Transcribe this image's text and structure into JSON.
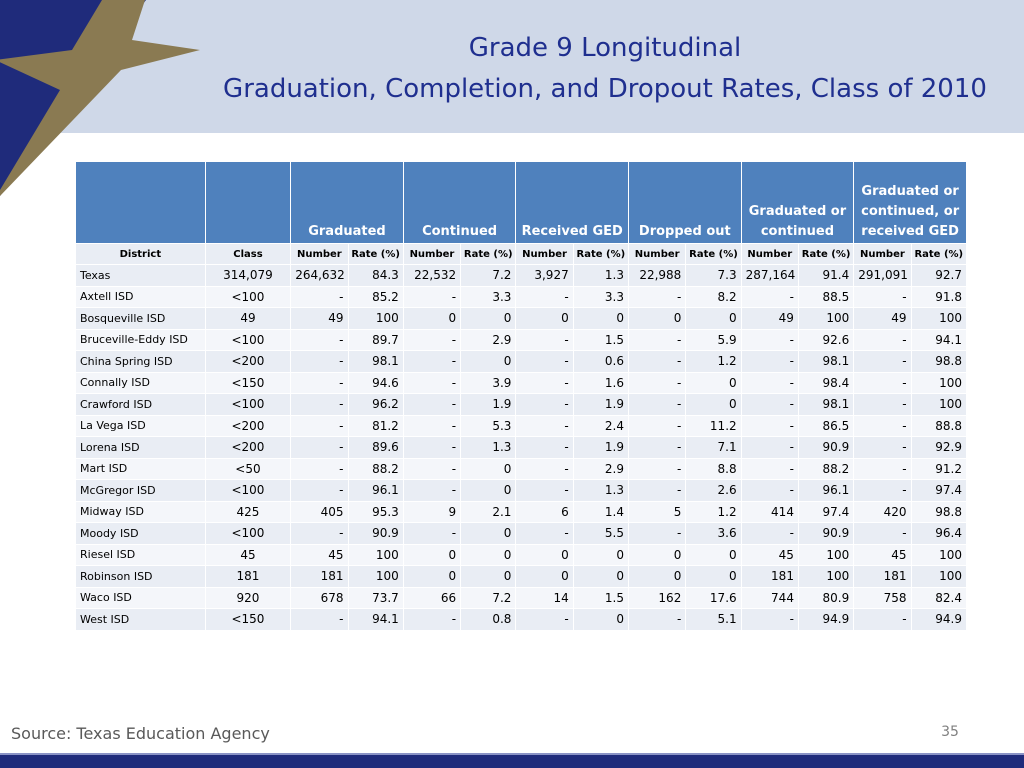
{
  "title_line1": "Grade 9 Longitudinal",
  "title_line2": "Graduation, Completion, and Dropout Rates, Class of 2010",
  "table": {
    "group_headers": [
      "",
      "",
      "Graduated",
      "Continued",
      "Received GED",
      "Dropped out",
      "Graduated or continued",
      "Graduated or continued, or received GED"
    ],
    "sub_headers": [
      "District",
      "Class",
      "Number",
      "Rate (%)",
      "Number",
      "Rate (%)",
      "Number",
      "Rate (%)",
      "Number",
      "Rate (%)",
      "Number",
      "Rate (%)",
      "Number",
      "Rate (%)"
    ],
    "rows": [
      [
        "Texas",
        "314,079",
        "264,632",
        "84.3",
        "22,532",
        "7.2",
        "3,927",
        "1.3",
        "22,988",
        "7.3",
        "287,164",
        "91.4",
        "291,091",
        "92.7"
      ],
      [
        "Axtell ISD",
        "<100",
        "-",
        "85.2",
        "-",
        "3.3",
        "-",
        "3.3",
        "-",
        "8.2",
        "-",
        "88.5",
        "-",
        "91.8"
      ],
      [
        "Bosqueville ISD",
        "49",
        "49",
        "100",
        "0",
        "0",
        "0",
        "0",
        "0",
        "0",
        "49",
        "100",
        "49",
        "100"
      ],
      [
        "Bruceville-Eddy ISD",
        "<100",
        "-",
        "89.7",
        "-",
        "2.9",
        "-",
        "1.5",
        "-",
        "5.9",
        "-",
        "92.6",
        "-",
        "94.1"
      ],
      [
        "China Spring ISD",
        "<200",
        "-",
        "98.1",
        "-",
        "0",
        "-",
        "0.6",
        "-",
        "1.2",
        "-",
        "98.1",
        "-",
        "98.8"
      ],
      [
        "Connally ISD",
        "<150",
        "-",
        "94.6",
        "-",
        "3.9",
        "-",
        "1.6",
        "-",
        "0",
        "-",
        "98.4",
        "-",
        "100"
      ],
      [
        "Crawford ISD",
        "<100",
        "-",
        "96.2",
        "-",
        "1.9",
        "-",
        "1.9",
        "-",
        "0",
        "-",
        "98.1",
        "-",
        "100"
      ],
      [
        "La Vega ISD",
        "<200",
        "-",
        "81.2",
        "-",
        "5.3",
        "-",
        "2.4",
        "-",
        "11.2",
        "-",
        "86.5",
        "-",
        "88.8"
      ],
      [
        "Lorena ISD",
        "<200",
        "-",
        "89.6",
        "-",
        "1.3",
        "-",
        "1.9",
        "-",
        "7.1",
        "-",
        "90.9",
        "-",
        "92.9"
      ],
      [
        "Mart ISD",
        "<50",
        "-",
        "88.2",
        "-",
        "0",
        "-",
        "2.9",
        "-",
        "8.8",
        "-",
        "88.2",
        "-",
        "91.2"
      ],
      [
        "McGregor ISD",
        "<100",
        "-",
        "96.1",
        "-",
        "0",
        "-",
        "1.3",
        "-",
        "2.6",
        "-",
        "96.1",
        "-",
        "97.4"
      ],
      [
        "Midway ISD",
        "425",
        "405",
        "95.3",
        "9",
        "2.1",
        "6",
        "1.4",
        "5",
        "1.2",
        "414",
        "97.4",
        "420",
        "98.8"
      ],
      [
        "Moody ISD",
        "<100",
        "-",
        "90.9",
        "-",
        "0",
        "-",
        "5.5",
        "-",
        "3.6",
        "-",
        "90.9",
        "-",
        "96.4"
      ],
      [
        "Riesel ISD",
        "45",
        "45",
        "100",
        "0",
        "0",
        "0",
        "0",
        "0",
        "0",
        "45",
        "100",
        "45",
        "100"
      ],
      [
        "Robinson ISD",
        "181",
        "181",
        "100",
        "0",
        "0",
        "0",
        "0",
        "0",
        "0",
        "181",
        "100",
        "181",
        "100"
      ],
      [
        "Waco ISD",
        "920",
        "678",
        "73.7",
        "66",
        "7.2",
        "14",
        "1.5",
        "162",
        "17.6",
        "744",
        "80.9",
        "758",
        "82.4"
      ],
      [
        "West ISD",
        "<150",
        "-",
        "94.1",
        "-",
        "0.8",
        "-",
        "0",
        "-",
        "5.1",
        "-",
        "94.9",
        "-",
        "94.9"
      ]
    ]
  },
  "source": "Source: Texas Education Agency",
  "page_number": "35",
  "colors": {
    "banner": "#cfd8e8",
    "navy": "#1f2b7b",
    "gold_star": "#8a7a52",
    "header_blue": "#4f81bd",
    "title_blue": "#1f2f8f"
  },
  "icons": [
    "star-icon"
  ]
}
